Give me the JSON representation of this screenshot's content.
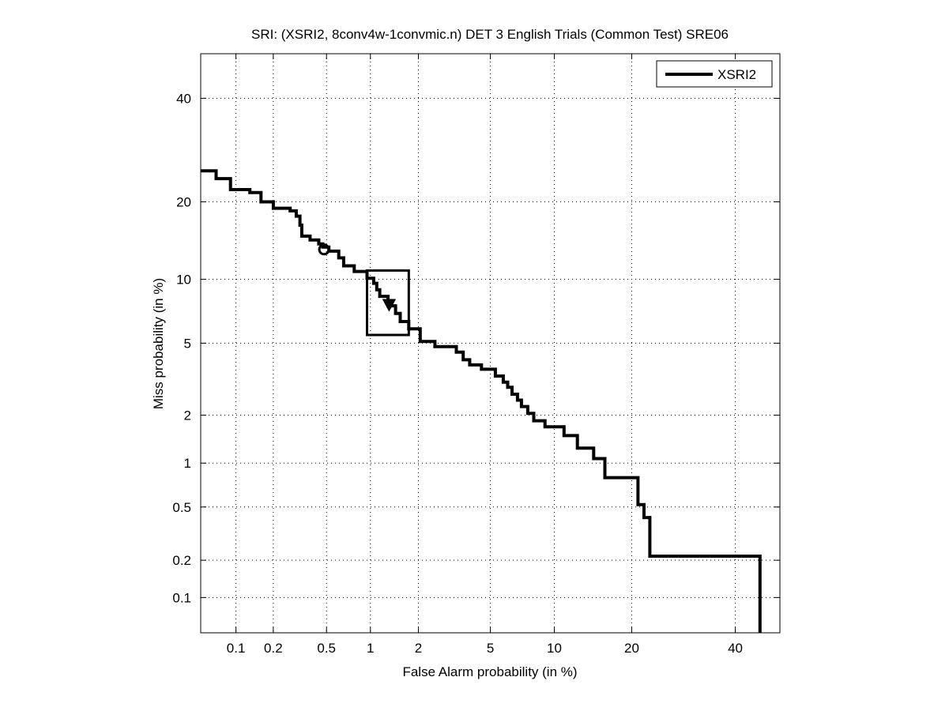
{
  "chart_data": {
    "type": "line",
    "title": "SRI: (XSRI2, 8conv4w-1convmic.n) DET 3 English Trials (Common Test) SRE06",
    "xlabel": "False Alarm probability (in %)",
    "ylabel": "Miss probability (in %)",
    "x_scale": "normal-deviate (probit)",
    "y_scale": "normal-deviate (probit)",
    "xlim": [
      0.05,
      50
    ],
    "ylim": [
      0.05,
      50
    ],
    "x_ticks": [
      0.1,
      0.2,
      0.5,
      1,
      2,
      5,
      10,
      20,
      40
    ],
    "x_tick_labels": [
      "0.1",
      "0.2",
      "0.5",
      "1",
      "2",
      "5",
      "10",
      "20",
      "40"
    ],
    "y_ticks": [
      0.1,
      0.2,
      0.5,
      1,
      2,
      5,
      10,
      20,
      40
    ],
    "y_tick_labels": [
      "0.1",
      "0.2",
      "0.5",
      "1",
      "2",
      "5",
      "10",
      "20",
      "40"
    ],
    "grid": true,
    "legend_position": "top-right",
    "series": [
      {
        "name": "XSRI2",
        "color": "#000000",
        "points": [
          [
            0.05,
            25.3
          ],
          [
            0.068,
            25.3
          ],
          [
            0.068,
            23.9
          ],
          [
            0.09,
            23.9
          ],
          [
            0.09,
            22.0
          ],
          [
            0.13,
            22.0
          ],
          [
            0.13,
            21.5
          ],
          [
            0.16,
            21.5
          ],
          [
            0.16,
            20.0
          ],
          [
            0.2,
            20.0
          ],
          [
            0.2,
            19.0
          ],
          [
            0.27,
            19.0
          ],
          [
            0.27,
            18.6
          ],
          [
            0.3,
            18.6
          ],
          [
            0.3,
            17.8
          ],
          [
            0.32,
            17.8
          ],
          [
            0.32,
            16.5
          ],
          [
            0.33,
            16.5
          ],
          [
            0.33,
            15.0
          ],
          [
            0.38,
            15.0
          ],
          [
            0.38,
            14.5
          ],
          [
            0.44,
            14.5
          ],
          [
            0.44,
            14.0
          ],
          [
            0.47,
            14.0
          ],
          [
            0.47,
            13.6
          ],
          [
            0.52,
            13.6
          ],
          [
            0.52,
            13.1
          ],
          [
            0.61,
            13.1
          ],
          [
            0.61,
            12.3
          ],
          [
            0.66,
            12.3
          ],
          [
            0.66,
            11.4
          ],
          [
            0.78,
            11.4
          ],
          [
            0.78,
            10.8
          ],
          [
            0.95,
            10.8
          ],
          [
            0.95,
            10.1
          ],
          [
            1.05,
            10.1
          ],
          [
            1.05,
            9.6
          ],
          [
            1.1,
            9.6
          ],
          [
            1.1,
            9.0
          ],
          [
            1.15,
            9.0
          ],
          [
            1.15,
            8.4
          ],
          [
            1.3,
            8.4
          ],
          [
            1.3,
            7.6
          ],
          [
            1.45,
            7.6
          ],
          [
            1.45,
            7.0
          ],
          [
            1.55,
            7.0
          ],
          [
            1.55,
            6.4
          ],
          [
            1.75,
            6.4
          ],
          [
            1.75,
            5.9
          ],
          [
            2.05,
            5.9
          ],
          [
            2.05,
            5.1
          ],
          [
            2.5,
            5.1
          ],
          [
            2.5,
            4.8
          ],
          [
            3.3,
            4.8
          ],
          [
            3.3,
            4.5
          ],
          [
            3.6,
            4.5
          ],
          [
            3.6,
            4.1
          ],
          [
            3.9,
            4.1
          ],
          [
            3.9,
            3.85
          ],
          [
            4.5,
            3.85
          ],
          [
            4.5,
            3.65
          ],
          [
            5.3,
            3.65
          ],
          [
            5.3,
            3.35
          ],
          [
            5.8,
            3.35
          ],
          [
            5.8,
            3.1
          ],
          [
            6.1,
            3.1
          ],
          [
            6.1,
            2.9
          ],
          [
            6.4,
            2.9
          ],
          [
            6.4,
            2.65
          ],
          [
            6.8,
            2.65
          ],
          [
            6.8,
            2.45
          ],
          [
            7.1,
            2.45
          ],
          [
            7.1,
            2.25
          ],
          [
            7.6,
            2.25
          ],
          [
            7.6,
            2.05
          ],
          [
            8.1,
            2.05
          ],
          [
            8.1,
            1.85
          ],
          [
            9.1,
            1.85
          ],
          [
            9.1,
            1.7
          ],
          [
            11.0,
            1.7
          ],
          [
            11.0,
            1.5
          ],
          [
            12.5,
            1.5
          ],
          [
            12.5,
            1.25
          ],
          [
            14.5,
            1.25
          ],
          [
            14.5,
            1.07
          ],
          [
            16.0,
            1.07
          ],
          [
            16.0,
            0.8
          ],
          [
            21.0,
            0.8
          ],
          [
            21.0,
            0.52
          ],
          [
            22.0,
            0.52
          ],
          [
            22.0,
            0.42
          ],
          [
            23.0,
            0.42
          ],
          [
            23.0,
            0.215
          ],
          [
            45.5,
            0.215
          ],
          [
            45.5,
            0.05
          ]
        ]
      }
    ],
    "markers": [
      {
        "shape": "circle",
        "x": 0.48,
        "y": 13.3
      },
      {
        "shape": "triangle-down",
        "x": 1.32,
        "y": 7.7
      }
    ],
    "boxes": [
      {
        "x_range": [
          0.95,
          1.75
        ],
        "y_range": [
          5.5,
          10.9
        ]
      }
    ]
  }
}
